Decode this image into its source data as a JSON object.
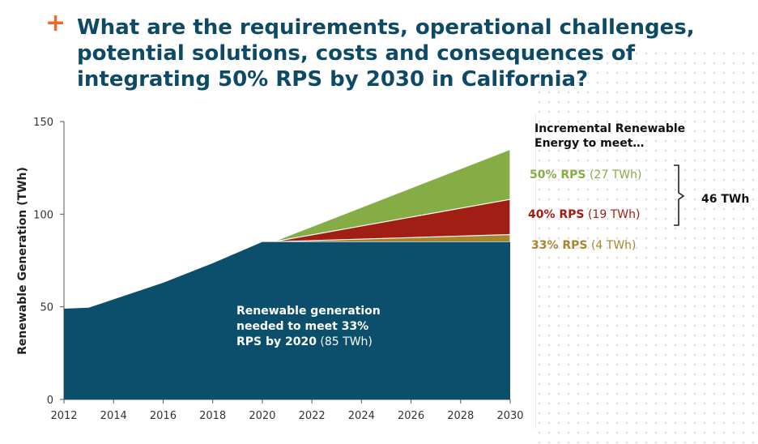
{
  "header": {
    "title": "What are the requirements, operational challenges, potential solutions, costs and consequences of integrating 50% RPS by 2030 in California?",
    "accent_color": "#ef6a2b",
    "title_color": "#0e4a66"
  },
  "chart_data": {
    "type": "area",
    "ylabel": "Renewable Generation (TWh)",
    "ylim": [
      0,
      150
    ],
    "xlim": [
      2012,
      2030
    ],
    "yticks": [
      "0",
      "50",
      "100",
      "150"
    ],
    "xticks": [
      "2012",
      "2014",
      "2016",
      "2018",
      "2020",
      "2022",
      "2024",
      "2026",
      "2028",
      "2030"
    ],
    "baseline": {
      "x": [
        2012,
        2013,
        2014,
        2016,
        2018,
        2020,
        2030
      ],
      "y": [
        49,
        49.5,
        54,
        63,
        73.5,
        85,
        85
      ],
      "color": "#0b4f6c"
    },
    "bands": [
      {
        "key": "33",
        "from": 2020.2,
        "x": [
          2020.2,
          2030
        ],
        "top": [
          85,
          89
        ],
        "color": "#a8862e"
      },
      {
        "key": "40",
        "from": 2020.4,
        "x": [
          2020.4,
          2030
        ],
        "top": [
          86,
          108
        ],
        "color": "#a11e14"
      },
      {
        "key": "50",
        "from": 2020.4,
        "x": [
          2020.4,
          2030
        ],
        "top": [
          87,
          135
        ],
        "color": "#86ac45"
      }
    ],
    "annotation": {
      "line1": "Renewable generation",
      "line2": "needed to meet 33%",
      "line3_bold": "RPS by 2020",
      "line3_rest": " (85 TWh)"
    }
  },
  "legend": {
    "title": "Incremental Renewable Energy to meet…",
    "items": [
      {
        "bold": "50% RPS",
        "rest": " (27 TWh)",
        "color": "#86ac45"
      },
      {
        "bold": "40% RPS",
        "rest": " (19 TWh)",
        "color": "#a11e14"
      },
      {
        "bold": "33% RPS",
        "rest": " (4 TWh)",
        "color": "#a8862e"
      }
    ],
    "total": "46 TWh"
  }
}
